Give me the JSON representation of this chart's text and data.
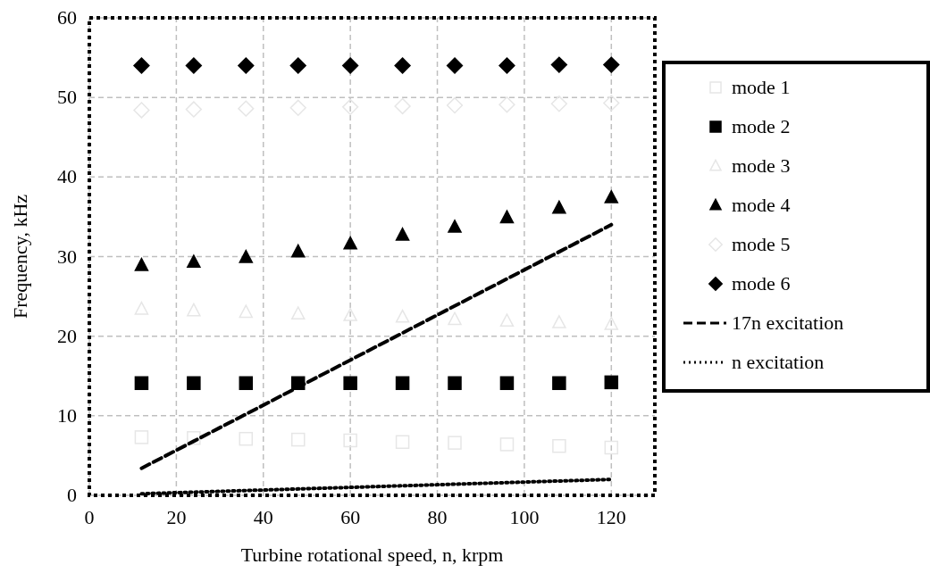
{
  "chart_data": {
    "type": "scatter",
    "xlabel": "Turbine rotational speed, n, krpm",
    "ylabel": "Frequency, kHz",
    "x": [
      12,
      24,
      36,
      48,
      60,
      72,
      84,
      96,
      108,
      120
    ],
    "xlim": [
      0,
      130
    ],
    "xticks": [
      0,
      20,
      40,
      60,
      80,
      100,
      120
    ],
    "ylim": [
      0,
      60
    ],
    "yticks": [
      0,
      10,
      20,
      30,
      40,
      50,
      60
    ],
    "grid": true,
    "legend": "right",
    "series": [
      {
        "name": "mode 1",
        "color": "#e6e6e6",
        "marker": "square",
        "values": [
          7.3,
          7.2,
          7.1,
          7.0,
          6.9,
          6.7,
          6.6,
          6.4,
          6.2,
          6.0
        ]
      },
      {
        "name": "mode 2",
        "color": "#000000",
        "marker": "square",
        "values": [
          14.1,
          14.1,
          14.1,
          14.1,
          14.1,
          14.1,
          14.1,
          14.1,
          14.1,
          14.2
        ]
      },
      {
        "name": "mode 3",
        "color": "#e6e6e6",
        "marker": "triangle",
        "values": [
          23.4,
          23.2,
          23.0,
          22.8,
          22.6,
          22.4,
          22.1,
          21.9,
          21.7,
          21.5
        ]
      },
      {
        "name": "mode 4",
        "color": "#000000",
        "marker": "triangle",
        "values": [
          28.9,
          29.3,
          29.9,
          30.6,
          31.6,
          32.7,
          33.7,
          34.9,
          36.1,
          37.4
        ]
      },
      {
        "name": "mode 5",
        "color": "#e6e6e6",
        "marker": "diamond",
        "values": [
          48.4,
          48.5,
          48.6,
          48.7,
          48.8,
          48.9,
          49.0,
          49.1,
          49.2,
          49.3
        ]
      },
      {
        "name": "mode 6",
        "color": "#000000",
        "marker": "diamond",
        "values": [
          54.0,
          54.0,
          54.0,
          54.0,
          54.0,
          54.0,
          54.0,
          54.0,
          54.1,
          54.1
        ]
      },
      {
        "name": "17n excitation",
        "type": "line",
        "color": "#000000",
        "line_style": "dashed",
        "marker": "none",
        "values": [
          3.4,
          6.8,
          10.2,
          13.6,
          17,
          20.4,
          23.8,
          27.2,
          30.6,
          34
        ]
      },
      {
        "name": "n excitation",
        "type": "line",
        "color": "#000000",
        "line_style": "dotted",
        "marker": "none",
        "values": [
          0.2,
          0.4,
          0.6,
          0.8,
          1.0,
          1.2,
          1.4,
          1.6,
          1.8,
          2.0
        ]
      }
    ]
  }
}
